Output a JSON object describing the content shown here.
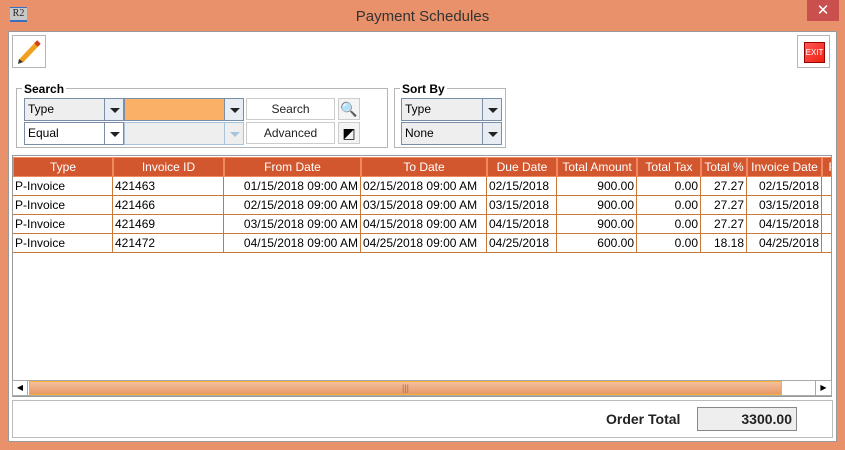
{
  "window": {
    "title": "Payment Schedules",
    "app_icon": "R2"
  },
  "toolbar": {
    "edit_icon": "pencil-icon",
    "exit_label": "EXIT"
  },
  "search": {
    "legend": "Search",
    "field": "Type",
    "operator": "Equal",
    "value": "",
    "search_label": "Search",
    "advanced_label": "Advanced"
  },
  "sort": {
    "legend": "Sort By",
    "first": "Type",
    "second": "None"
  },
  "table": {
    "columns": [
      "Type",
      "Invoice ID",
      "From Date",
      "To Date",
      "Due Date",
      "Total Amount",
      "Total Tax",
      "Total %",
      "Invoice Date",
      "P"
    ],
    "rows": [
      [
        "P-Invoice",
        "421463",
        "01/15/2018 09:00 AM",
        "02/15/2018 09:00 AM",
        "02/15/2018",
        "900.00",
        "0.00",
        "27.27",
        "02/15/2018",
        ""
      ],
      [
        "P-Invoice",
        "421466",
        "02/15/2018 09:00 AM",
        "03/15/2018 09:00 AM",
        "03/15/2018",
        "900.00",
        "0.00",
        "27.27",
        "03/15/2018",
        ""
      ],
      [
        "P-Invoice",
        "421469",
        "03/15/2018 09:00 AM",
        "04/15/2018 09:00 AM",
        "04/15/2018",
        "900.00",
        "0.00",
        "27.27",
        "04/15/2018",
        ""
      ],
      [
        "P-Invoice",
        "421472",
        "04/15/2018 09:00 AM",
        "04/25/2018 09:00 AM",
        "04/25/2018",
        "600.00",
        "0.00",
        "18.18",
        "04/25/2018",
        ""
      ]
    ]
  },
  "footer": {
    "order_total_label": "Order Total",
    "order_total_value": "3300.00"
  },
  "colors": {
    "frame": "#E8916A",
    "header": "#D2572F",
    "search_value": "#FBB067"
  }
}
